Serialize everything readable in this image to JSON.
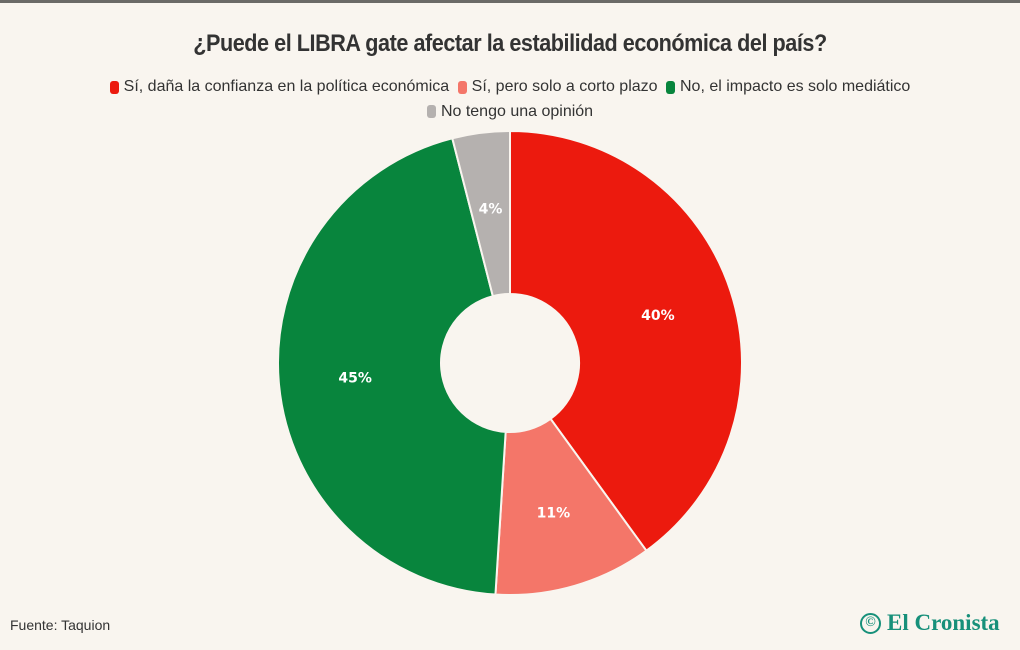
{
  "header": {
    "title": "¿Puede el LIBRA gate afectar la estabilidad económica del país?"
  },
  "legend": {
    "items": [
      {
        "label": "Sí, daña la confianza en la política económica",
        "color": "#ec1a0e"
      },
      {
        "label": "Sí, pero solo a corto plazo",
        "color": "#f47669"
      },
      {
        "label": "No, el impacto es solo mediático",
        "color": "#08853d"
      },
      {
        "label": "No tengo una opinión",
        "color": "#b5b1af"
      }
    ]
  },
  "footer": {
    "source": "Fuente: Taquion",
    "logo_text": "El Cronista",
    "logo_icon": "©"
  },
  "chart_data": {
    "type": "pie",
    "donut": true,
    "title": "¿Puede el LIBRA gate afectar la estabilidad económica del país?",
    "categories": [
      "Sí, daña la confianza en la política económica",
      "Sí, pero solo a corto plazo",
      "No, el impacto es solo mediático",
      "No tengo una opinión"
    ],
    "values": [
      40,
      11,
      45,
      4
    ],
    "labels": [
      "40%",
      "11%",
      "45%",
      "4%"
    ],
    "colors": [
      "#ec1a0e",
      "#f47669",
      "#08853d",
      "#b5b1af"
    ],
    "legend_position": "top",
    "source": "Fuente: Taquion"
  }
}
